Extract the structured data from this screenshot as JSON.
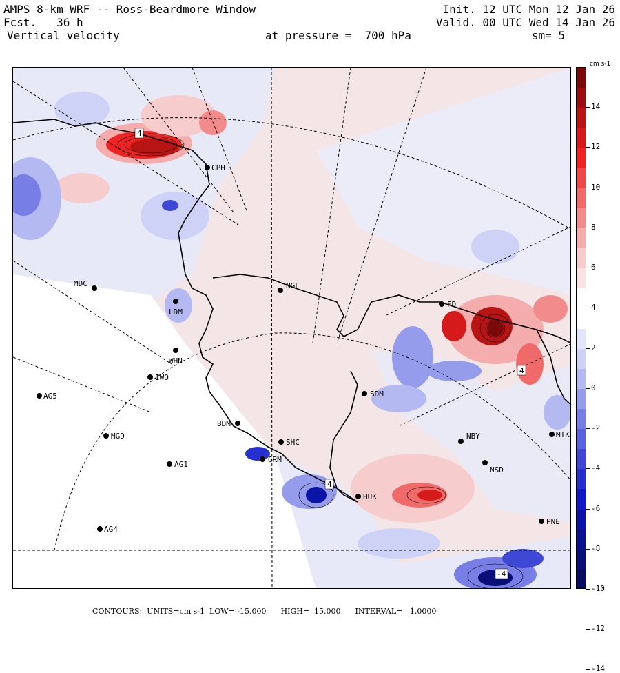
{
  "header": {
    "title": "AMPS 8-km WRF -- Ross-Beardmore Window",
    "fcst": "Fcst.   36 h",
    "field": "Vertical velocity",
    "init": "Init. 12 UTC Mon 12 Jan 26",
    "valid": "Valid. 00 UTC Wed 14 Jan 26",
    "pressure": "at pressure =  700 hPa",
    "smoothing": "sm= 5"
  },
  "colorbar": {
    "units_label": "cm s-1",
    "labels": [
      "14",
      "12",
      "10",
      "8",
      "6",
      "4",
      "2",
      "0",
      "-2",
      "-4",
      "-6",
      "-8",
      "-10",
      "-12",
      "-14"
    ],
    "colors": [
      "#7a0a0a",
      "#9a0f0f",
      "#b81414",
      "#d41a1a",
      "#ee2323",
      "#f04848",
      "#f06a6a",
      "#f28c8c",
      "#f4acac",
      "#f7cccc",
      "#fae3e3",
      "#ffffff",
      "#ffffff",
      "#e3e5fb",
      "#cfd2f7",
      "#b4b9f2",
      "#969cec",
      "#777ee5",
      "#5a62dd",
      "#3f47d5",
      "#2630cf",
      "#1018c8",
      "#0c14a8",
      "#0a1090",
      "#0a0e78",
      "#080b62"
    ]
  },
  "stations": [
    {
      "id": "CPH"
    },
    {
      "id": "NGL"
    },
    {
      "id": "MDC"
    },
    {
      "id": "LDM"
    },
    {
      "id": "FD"
    },
    {
      "id": "WHN"
    },
    {
      "id": "IWO"
    },
    {
      "id": "AG5"
    },
    {
      "id": "SDM"
    },
    {
      "id": "BDM"
    },
    {
      "id": "MGD"
    },
    {
      "id": "SHC"
    },
    {
      "id": "NBY"
    },
    {
      "id": "MTK"
    },
    {
      "id": "GRM"
    },
    {
      "id": "AG1"
    },
    {
      "id": "NSD"
    },
    {
      "id": "HUK"
    },
    {
      "id": "AG4"
    },
    {
      "id": "PNE"
    }
  ],
  "contour_labels": [
    "4",
    "4",
    "4",
    "-4"
  ],
  "footer": {
    "text": "CONTOURS:  UNITS=cm s-1  LOW= -15.000      HIGH=  15.000      INTERVAL=   1.0000"
  }
}
